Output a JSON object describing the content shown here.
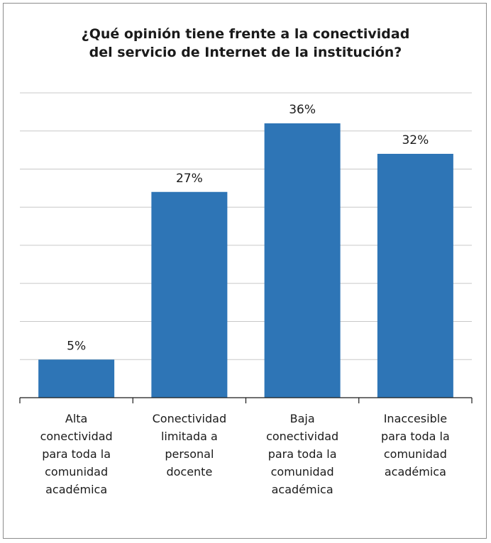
{
  "chart_data": {
    "type": "bar",
    "title_lines": [
      "¿Qué opinión  tiene frente a la conectividad",
      "del servicio de Internet de la institución?"
    ],
    "categories": [
      [
        "Alta",
        "conectividad",
        "para toda la",
        "comunidad",
        "académica"
      ],
      [
        "Conectividad",
        "limitada a",
        "personal",
        "docente"
      ],
      [
        "Baja",
        "conectividad",
        "para toda la",
        "comunidad",
        "académica"
      ],
      [
        "Inaccesible",
        "para toda la",
        "comunidad",
        "académica"
      ]
    ],
    "values": [
      5,
      27,
      36,
      32
    ],
    "data_labels": [
      "5%",
      "27%",
      "36%",
      "32%"
    ],
    "ylim": [
      0,
      40
    ],
    "grid": true,
    "bar_color": "#2e75b6"
  }
}
